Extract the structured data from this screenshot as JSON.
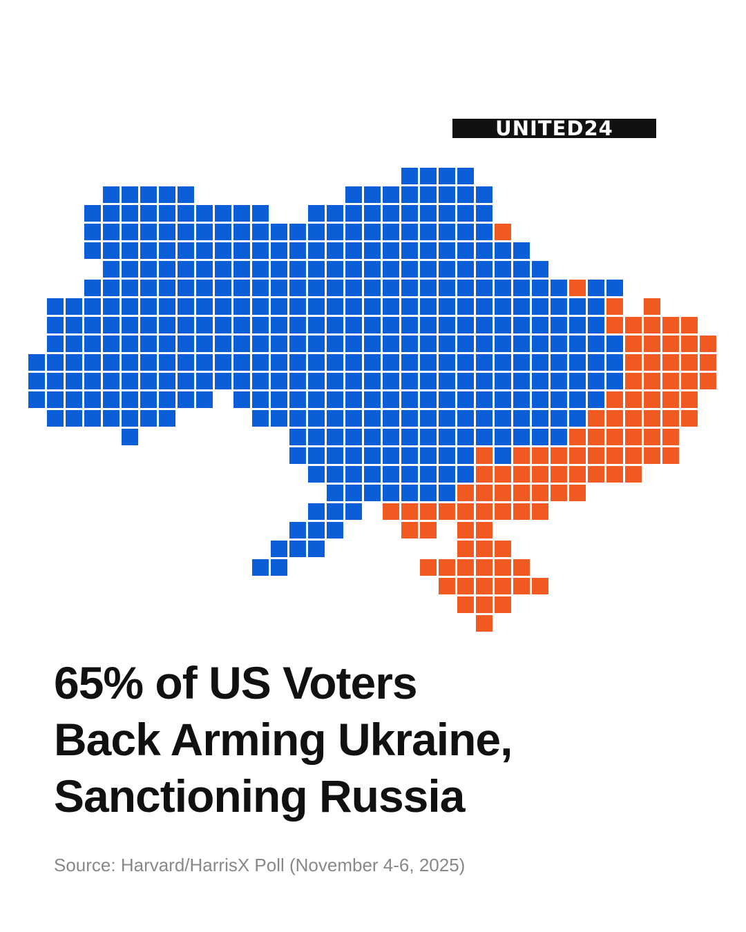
{
  "logo": "UNITED24",
  "title": [
    "65% of US Voters",
    "Back Arming Ukraine,",
    "Sanctioning Russia"
  ],
  "source": "Source: Harvard/HarrisX Poll (November 4-6, 2025)"
}
